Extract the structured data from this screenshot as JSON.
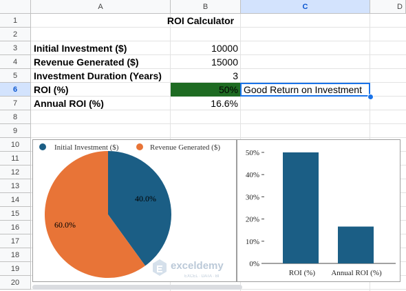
{
  "columns": [
    "A",
    "B",
    "C",
    "D"
  ],
  "rows": [
    "1",
    "2",
    "3",
    "4",
    "5",
    "6",
    "7",
    "8",
    "9",
    "10",
    "11",
    "12",
    "13",
    "14",
    "15",
    "16",
    "17",
    "18",
    "19",
    "20"
  ],
  "title": "ROI Calculator",
  "labels": {
    "initial_investment": "Initial Investment ($)",
    "revenue_generated": "Revenue Generated ($)",
    "investment_duration": "Investment Duration (Years)",
    "roi": "ROI (%)",
    "annual_roi": "Annual ROI (%)"
  },
  "values": {
    "initial_investment": "10000",
    "revenue_generated": "15000",
    "investment_duration": "3",
    "roi": "50%",
    "annual_roi": "16.6%"
  },
  "comment": "Good Return on Investment",
  "colors": {
    "roi_fill": "#1e6b22",
    "selection": "#1a73e8",
    "series_blue": "#1b5e85",
    "series_orange": "#e87437"
  },
  "watermark": {
    "brand": "exceldemy",
    "tagline": "EXCEL · DATA · BI"
  },
  "chart_data": [
    {
      "type": "pie",
      "categories": [
        "Initial Investment ($)",
        "Revenue Generated ($)"
      ],
      "values": [
        10000,
        15000
      ],
      "labels": [
        "40.0%",
        "60.0%"
      ],
      "legend": "top"
    },
    {
      "type": "bar",
      "categories": [
        "ROI (%)",
        "Annual ROI (%)"
      ],
      "values": [
        50,
        16.6
      ],
      "ylim": [
        0,
        50
      ],
      "yticks": [
        "0%",
        "10%",
        "20%",
        "30%",
        "40%",
        "50%"
      ],
      "grid": false
    }
  ]
}
